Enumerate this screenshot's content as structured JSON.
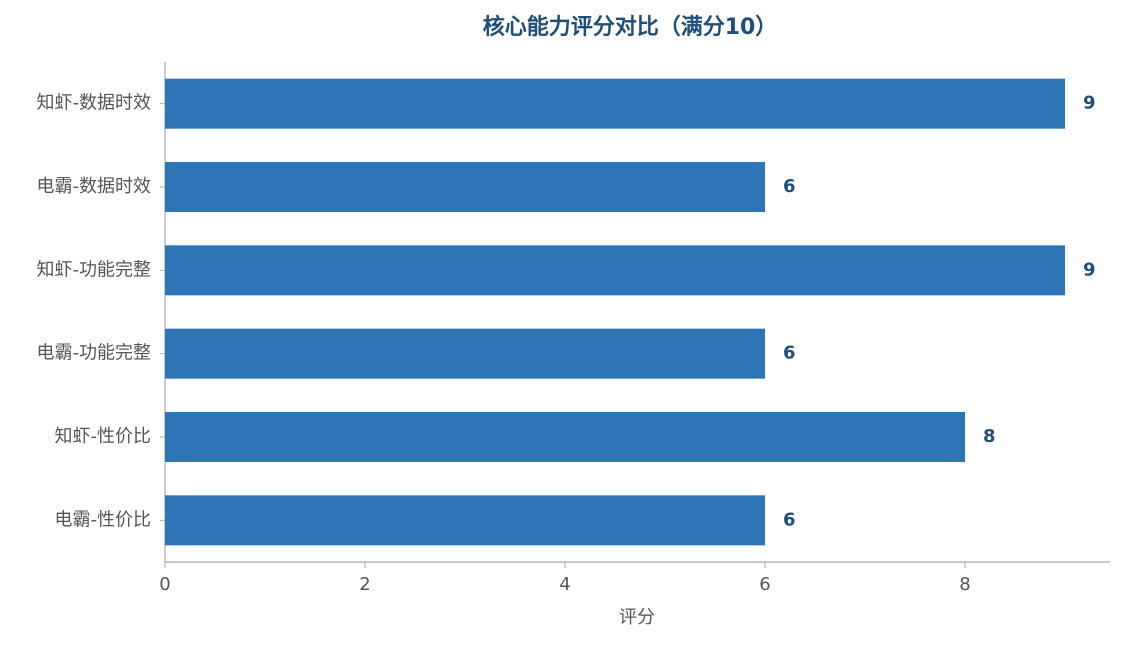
{
  "chart_data": {
    "type": "barh",
    "title": "核心能力评分对比（满分10）",
    "categories": [
      "知虾-数据时效",
      "电霸-数据时效",
      "知虾-功能完整",
      "电霸-功能完整",
      "知虾-性价比",
      "电霸-性价比"
    ],
    "values": [
      9,
      6,
      9,
      6,
      8,
      6
    ],
    "color": "#2e75b6",
    "x_label": "评分",
    "xlim": [
      0,
      9.45
    ],
    "xticks": [
      0,
      2,
      4,
      6,
      8
    ],
    "grid": false
  }
}
